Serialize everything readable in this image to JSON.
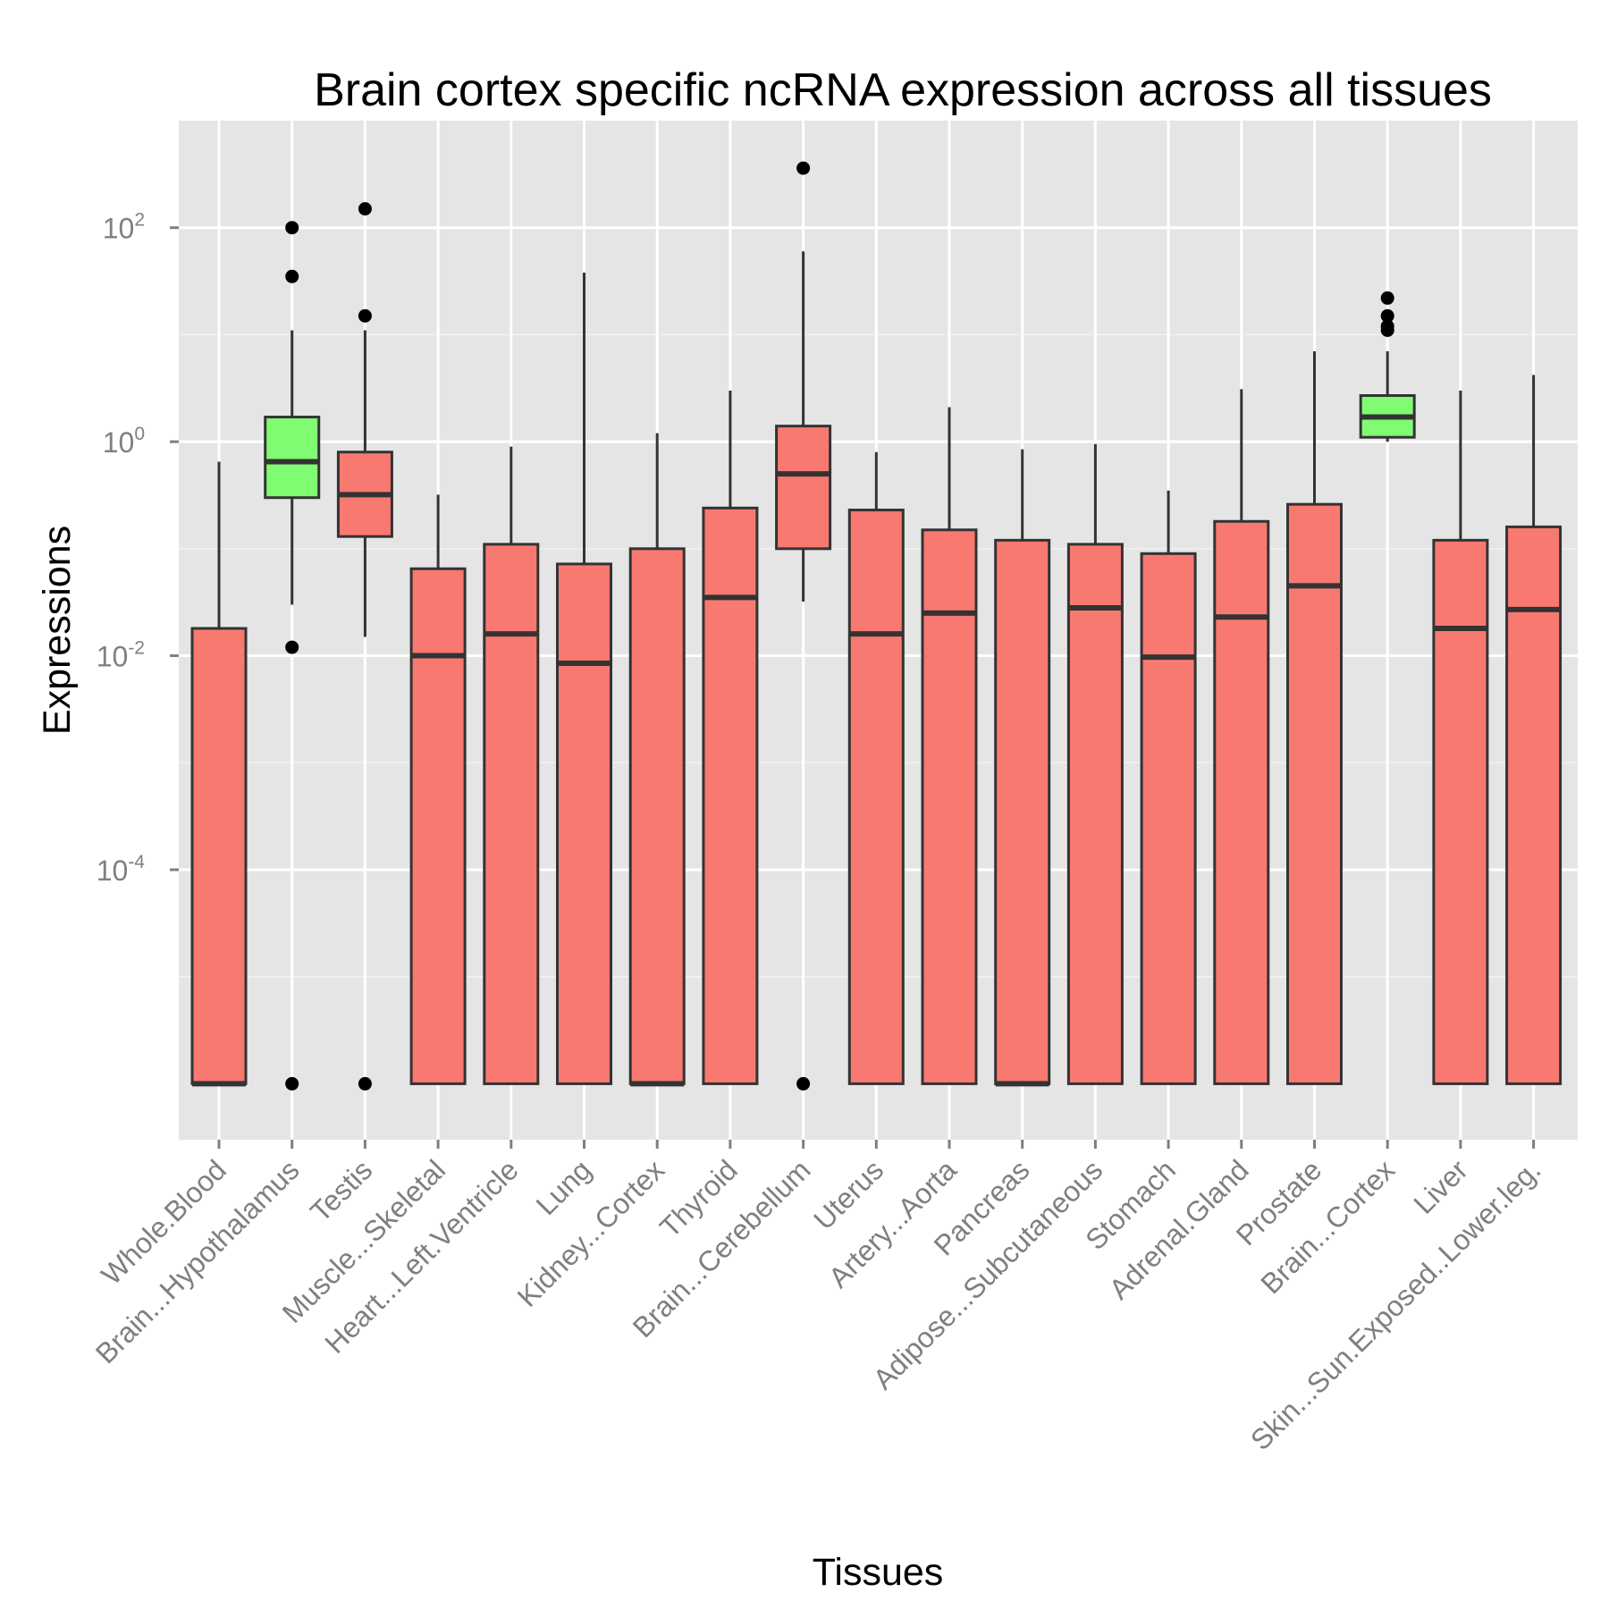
{
  "chart_data": {
    "type": "box",
    "title": "Brain cortex specific ncRNA expression across all tissues",
    "xlabel": "Tissues",
    "ylabel": "Expressions",
    "y_scale": "log10",
    "ylim": [
      3e-07,
      1000
    ],
    "y_ticks": [
      {
        "value": 0.0001,
        "base": "10",
        "exp": "-4"
      },
      {
        "value": 0.01,
        "base": "10",
        "exp": "-2"
      },
      {
        "value": 1,
        "base": "10",
        "exp": "0"
      },
      {
        "value": 100,
        "base": "10",
        "exp": "2"
      }
    ],
    "grid": true,
    "panel_background": "#e5e5e5",
    "colors": {
      "default": "#f8766d",
      "highlight": "#7cfc6e",
      "box_line": "#333333",
      "outlier": "#000000"
    },
    "categories": [
      "Whole.Blood",
      "Brain...Hypothalamus",
      "Testis",
      "Muscle...Skeletal",
      "Heart...Left.Ventricle",
      "Lung",
      "Kidney...Cortex",
      "Thyroid",
      "Brain...Cerebellum",
      "Uterus",
      "Artery...Aorta",
      "Pancreas",
      "Adipose...Subcutaneous",
      "Stomach",
      "Adrenal.Gland",
      "Prostate",
      "Brain...Cortex",
      "Liver",
      "Skin...Sun.Exposed..Lower.leg."
    ],
    "boxes": [
      {
        "min": 1e-06,
        "q1": 1e-06,
        "median": 1e-06,
        "q3": 0.018,
        "max": 0.65,
        "outliers": [],
        "highlight": false
      },
      {
        "min": 0.03,
        "q1": 0.3,
        "median": 0.65,
        "q3": 1.7,
        "max": 11,
        "outliers": [
          100,
          35,
          0.012,
          1e-06
        ],
        "highlight": true
      },
      {
        "min": 0.015,
        "q1": 0.13,
        "median": 0.32,
        "q3": 0.8,
        "max": 11,
        "outliers": [
          150,
          15,
          1e-06
        ],
        "highlight": false
      },
      {
        "min": 1e-06,
        "q1": 1e-06,
        "median": 0.01,
        "q3": 0.065,
        "max": 0.32,
        "outliers": [],
        "highlight": false
      },
      {
        "min": 1e-06,
        "q1": 1e-06,
        "median": 0.016,
        "q3": 0.11,
        "max": 0.9,
        "outliers": [],
        "highlight": false
      },
      {
        "min": 1e-06,
        "q1": 1e-06,
        "median": 0.0085,
        "q3": 0.072,
        "max": 38,
        "outliers": [],
        "highlight": false
      },
      {
        "min": 1e-06,
        "q1": 1e-06,
        "median": 1e-06,
        "q3": 0.1,
        "max": 1.2,
        "outliers": [],
        "highlight": false
      },
      {
        "min": 1e-06,
        "q1": 1e-06,
        "median": 0.035,
        "q3": 0.24,
        "max": 3,
        "outliers": [],
        "highlight": false
      },
      {
        "min": 0.032,
        "q1": 0.1,
        "median": 0.5,
        "q3": 1.4,
        "max": 60,
        "outliers": [
          360,
          1e-06
        ],
        "highlight": false
      },
      {
        "min": 1e-06,
        "q1": 1e-06,
        "median": 0.016,
        "q3": 0.23,
        "max": 0.8,
        "outliers": [],
        "highlight": false
      },
      {
        "min": 1e-06,
        "q1": 1e-06,
        "median": 0.025,
        "q3": 0.15,
        "max": 2.1,
        "outliers": [],
        "highlight": false
      },
      {
        "min": 1e-06,
        "q1": 1e-06,
        "median": 1e-06,
        "q3": 0.12,
        "max": 0.85,
        "outliers": [],
        "highlight": false
      },
      {
        "min": 1e-06,
        "q1": 1e-06,
        "median": 0.028,
        "q3": 0.11,
        "max": 0.95,
        "outliers": [],
        "highlight": false
      },
      {
        "min": 1e-06,
        "q1": 1e-06,
        "median": 0.0097,
        "q3": 0.09,
        "max": 0.35,
        "outliers": [],
        "highlight": false
      },
      {
        "min": 1e-06,
        "q1": 1e-06,
        "median": 0.023,
        "q3": 0.18,
        "max": 3.1,
        "outliers": [],
        "highlight": false
      },
      {
        "min": 1e-06,
        "q1": 1e-06,
        "median": 0.045,
        "q3": 0.26,
        "max": 7,
        "outliers": [],
        "highlight": false
      },
      {
        "min": 1,
        "q1": 1.1,
        "median": 1.7,
        "q3": 2.7,
        "max": 7,
        "outliers": [
          22,
          15,
          12,
          11
        ],
        "highlight": true
      },
      {
        "min": 1e-06,
        "q1": 1e-06,
        "median": 0.018,
        "q3": 0.12,
        "max": 3,
        "outliers": [],
        "highlight": false
      },
      {
        "min": 1e-06,
        "q1": 1e-06,
        "median": 0.027,
        "q3": 0.16,
        "max": 4.2,
        "outliers": [],
        "highlight": false
      }
    ]
  }
}
